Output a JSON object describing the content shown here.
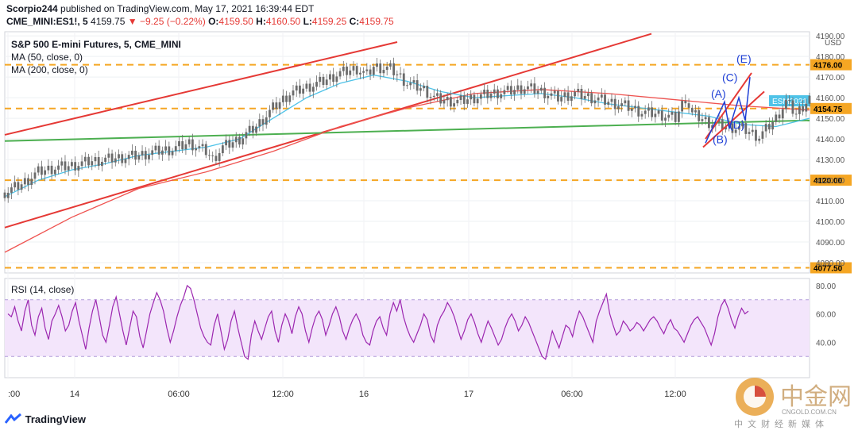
{
  "header": {
    "publisher": "Scorpio244",
    "published_text": "published on TradingView.com, May 17, 2021 16:39:44 EDT",
    "symbol": "CME_MINI:ES1!, 5",
    "last": "4159.75",
    "change_arrow": "▼",
    "change": "−9.25 (−0.22%)",
    "o_label": "O:",
    "o": "4159.50",
    "h_label": "H:",
    "h": "4160.50",
    "l_label": "L:",
    "l": "4159.25",
    "c_label": "C:",
    "c": "4159.75"
  },
  "legend": {
    "title": "S&P 500 E-mini Futures, 5, CME_MINI",
    "ma50": "MA (50, close, 0)",
    "ma200": "MA (200, close, 0)",
    "rsi": "RSI (14, close)"
  },
  "colors": {
    "candle": "#6b6b6b",
    "ma50": "#4fc3e8",
    "ma200": "#ef5350",
    "channel": "#e53935",
    "green_line": "#4caf50",
    "level": "#f5a623",
    "rsi": "#9c27b0",
    "rsi_band": "#f3e5fb",
    "wave": "#1e3fd6"
  },
  "chart_data": [
    {
      "type": "candlestick",
      "currency": "USD",
      "y_ticks": [
        "4190.00",
        "4180.00",
        "4170.00",
        "4160.00",
        "4150.00",
        "4140.00",
        "4130.00",
        "4120.00",
        "4110.00",
        "4100.00",
        "4090.00",
        "4080.00"
      ],
      "ylim": [
        4075,
        4192
      ],
      "x_ticks": [
        ":00",
        "14",
        "06:00",
        "12:00",
        "16",
        "17",
        "06:00",
        "12:00"
      ],
      "levels": [
        {
          "value": 4176.0,
          "label": "4176.00"
        },
        {
          "value": 4154.75,
          "label": "4154.75"
        },
        {
          "value": 4120.0,
          "label": "4120.00"
        },
        {
          "value": 4077.5,
          "label": "4077.50"
        }
      ],
      "price_tag": "ESM2021",
      "close_path": [
        [
          0,
          4114
        ],
        [
          5,
          4118
        ],
        [
          10,
          4124
        ],
        [
          15,
          4126
        ],
        [
          20,
          4127
        ],
        [
          25,
          4129
        ],
        [
          30,
          4130
        ],
        [
          35,
          4131
        ],
        [
          40,
          4132
        ],
        [
          45,
          4134
        ],
        [
          50,
          4135
        ],
        [
          55,
          4138
        ],
        [
          60,
          4134
        ],
        [
          62,
          4130
        ],
        [
          65,
          4136
        ],
        [
          70,
          4140
        ],
        [
          75,
          4146
        ],
        [
          80,
          4155
        ],
        [
          85,
          4162
        ],
        [
          90,
          4165
        ],
        [
          95,
          4168
        ],
        [
          100,
          4172
        ],
        [
          105,
          4174
        ],
        [
          108,
          4171
        ],
        [
          110,
          4175
        ],
        [
          115,
          4174
        ],
        [
          118,
          4170
        ],
        [
          120,
          4167
        ],
        [
          125,
          4164
        ],
        [
          128,
          4160
        ],
        [
          130,
          4159
        ],
        [
          135,
          4158
        ],
        [
          140,
          4160
        ],
        [
          145,
          4162
        ],
        [
          150,
          4163
        ],
        [
          155,
          4165
        ],
        [
          160,
          4163
        ],
        [
          165,
          4160
        ],
        [
          170,
          4162
        ],
        [
          175,
          4160
        ],
        [
          180,
          4158
        ],
        [
          185,
          4156
        ],
        [
          190,
          4153
        ],
        [
          195,
          4152
        ],
        [
          200,
          4150
        ],
        [
          203,
          4160
        ],
        [
          205,
          4152
        ],
        [
          210,
          4148
        ],
        [
          215,
          4146
        ],
        [
          220,
          4145
        ],
        [
          225,
          4141
        ],
        [
          230,
          4150
        ],
        [
          233,
          4158
        ],
        [
          236,
          4152
        ],
        [
          240,
          4160
        ]
      ],
      "ma50_path": [
        [
          0,
          4112
        ],
        [
          10,
          4120
        ],
        [
          20,
          4125
        ],
        [
          30,
          4128
        ],
        [
          40,
          4132
        ],
        [
          50,
          4134
        ],
        [
          60,
          4136
        ],
        [
          70,
          4140
        ],
        [
          80,
          4150
        ],
        [
          90,
          4160
        ],
        [
          100,
          4167
        ],
        [
          110,
          4171
        ],
        [
          120,
          4168
        ],
        [
          130,
          4163
        ],
        [
          140,
          4160
        ],
        [
          150,
          4161
        ],
        [
          160,
          4162
        ],
        [
          170,
          4160
        ],
        [
          180,
          4157
        ],
        [
          190,
          4155
        ],
        [
          200,
          4153
        ],
        [
          210,
          4151
        ],
        [
          220,
          4147
        ],
        [
          230,
          4146
        ],
        [
          240,
          4150
        ]
      ],
      "ma200_path": [
        [
          0,
          4085
        ],
        [
          20,
          4102
        ],
        [
          40,
          4116
        ],
        [
          60,
          4124
        ],
        [
          80,
          4134
        ],
        [
          100,
          4146
        ],
        [
          120,
          4155
        ],
        [
          140,
          4162
        ],
        [
          160,
          4164
        ],
        [
          180,
          4162
        ],
        [
          200,
          4159
        ],
        [
          220,
          4156
        ],
        [
          240,
          4154
        ]
      ],
      "annotations": [
        "(A)",
        "(B)",
        "(C)",
        "(D)",
        "(E)"
      ]
    },
    {
      "type": "line",
      "name": "RSI (14, close)",
      "y_ticks": [
        "80.00",
        "60.00",
        "40.00"
      ],
      "ylim": [
        15,
        85
      ],
      "band": [
        30,
        70
      ],
      "values": [
        60,
        58,
        65,
        55,
        48,
        62,
        70,
        52,
        45,
        58,
        64,
        50,
        42,
        55,
        60,
        66,
        58,
        48,
        52,
        62,
        68,
        55,
        45,
        35,
        50,
        62,
        70,
        58,
        45,
        40,
        52,
        65,
        72,
        60,
        48,
        38,
        50,
        62,
        58,
        44,
        36,
        48,
        60,
        68,
        75,
        70,
        62,
        50,
        40,
        48,
        58,
        66,
        72,
        80,
        78,
        70,
        60,
        50,
        44,
        40,
        38,
        52,
        60,
        48,
        35,
        42,
        55,
        62,
        50,
        40,
        30,
        28,
        45,
        55,
        48,
        42,
        50,
        58,
        62,
        48,
        40,
        52,
        60,
        55,
        46,
        58,
        65,
        60,
        48,
        40,
        50,
        58,
        62,
        56,
        45,
        52,
        60,
        65,
        58,
        48,
        42,
        50,
        56,
        60,
        55,
        45,
        40,
        38,
        48,
        55,
        58,
        50,
        45,
        60,
        68,
        62,
        70,
        58,
        50,
        44,
        40,
        46,
        52,
        60,
        56,
        45,
        40,
        52,
        58,
        62,
        68,
        64,
        58,
        50,
        42,
        48,
        56,
        60,
        54,
        46,
        40,
        48,
        55,
        50,
        44,
        38,
        42,
        50,
        56,
        60,
        55,
        48,
        52,
        58,
        54,
        48,
        42,
        36,
        30,
        28,
        38,
        48,
        42,
        36,
        44,
        52,
        50,
        44,
        55,
        62,
        58,
        52,
        46,
        40,
        55,
        62,
        68,
        74,
        60,
        52,
        45,
        48,
        55,
        52,
        48,
        50,
        54,
        52,
        48,
        52,
        56,
        58,
        55,
        50,
        46,
        52,
        56,
        50,
        48,
        44,
        40,
        46,
        52,
        56,
        58,
        54,
        50,
        44,
        38,
        46,
        58,
        66,
        70,
        64,
        56,
        50,
        58,
        64,
        60,
        62
      ]
    }
  ]
}
